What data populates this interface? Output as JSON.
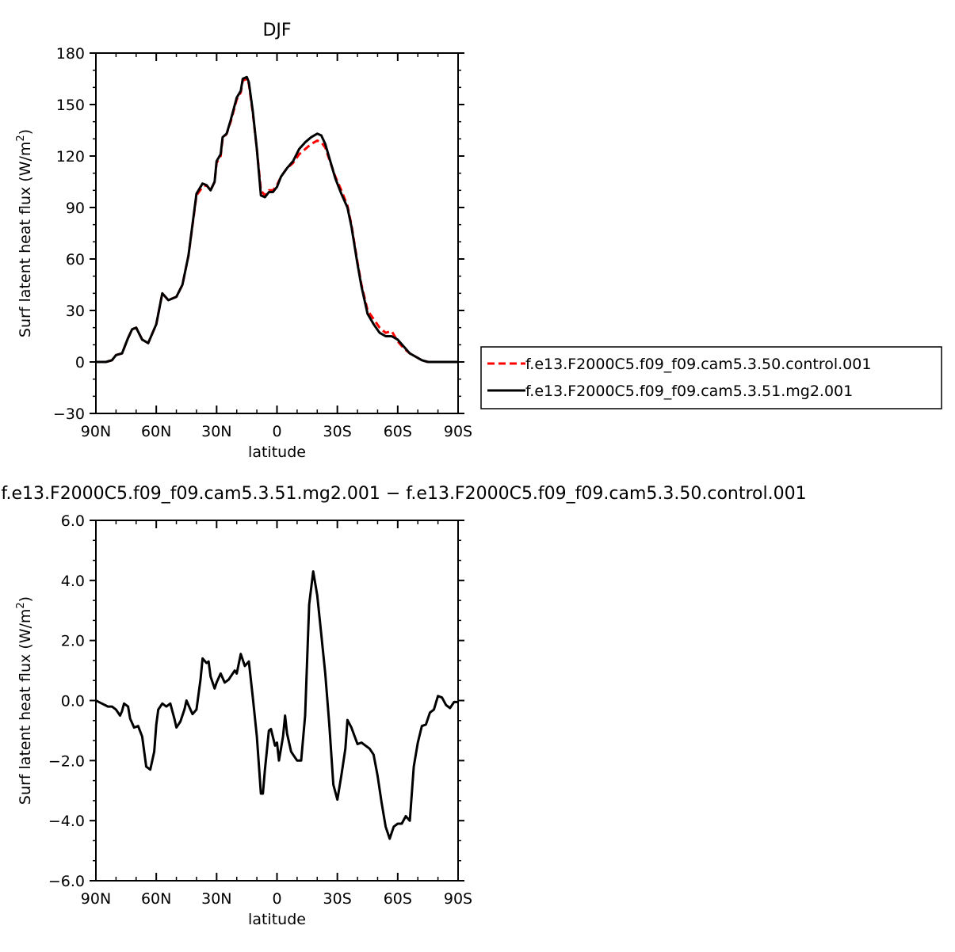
{
  "chart_data": [
    {
      "type": "line",
      "title": "DJF",
      "xlabel": "latitude",
      "ylabel": "Surf latent heat flux (W/m",
      "ylabel_sup": "2",
      "ylabel_close": ")",
      "xlim": [
        -90,
        90
      ],
      "ylim": [
        -30,
        180
      ],
      "x_tick_values": [
        -90,
        -60,
        -30,
        0,
        30,
        60,
        90
      ],
      "x_tick_labels": [
        "90N",
        "60N",
        "30N",
        "0",
        "30S",
        "60S",
        "90S"
      ],
      "y_tick_values": [
        -30,
        0,
        30,
        60,
        90,
        120,
        150,
        180
      ],
      "y_tick_labels": [
        "−30",
        "0",
        "30",
        "60",
        "90",
        "120",
        "150",
        "180"
      ],
      "grid": false,
      "legend_position": "right",
      "series": [
        {
          "name": "f.e13.F2000C5.f09_f09.cam5.3.50.control.001",
          "color": "#ff0000",
          "dash": "dashed",
          "x": [
            -90,
            -85,
            -82,
            -80,
            -77,
            -74,
            -72,
            -70,
            -67,
            -64,
            -60,
            -57,
            -54,
            -50,
            -47,
            -44,
            -40,
            -37,
            -35,
            -33,
            -31,
            -30,
            -28,
            -27,
            -25,
            -23,
            -20,
            -18,
            -17,
            -15,
            -14,
            -12,
            -10,
            -8,
            -6,
            -4,
            -2,
            0,
            2,
            5,
            8,
            11,
            14,
            17,
            20,
            22,
            24,
            26,
            29,
            32,
            35,
            37,
            40,
            42,
            45,
            48,
            51,
            54,
            57,
            60,
            63,
            66,
            69,
            72,
            75,
            78,
            80,
            83,
            86,
            88,
            90
          ],
          "y": [
            0,
            0,
            1,
            4,
            5,
            14,
            19,
            20,
            13,
            11,
            22,
            40,
            36,
            38,
            45,
            62,
            97,
            102,
            103,
            100,
            105,
            116,
            120,
            130,
            133,
            140,
            153,
            157,
            164,
            165,
            162,
            145,
            124,
            100,
            97,
            100,
            100,
            103,
            108,
            113,
            116,
            121,
            124,
            127,
            129,
            128,
            125,
            118,
            108,
            100,
            91,
            80,
            58,
            45,
            30,
            25,
            20,
            17,
            18,
            12,
            8,
            5,
            3,
            1,
            0,
            0,
            0,
            0,
            0,
            0,
            0
          ]
        },
        {
          "name": "f.e13.F2000C5.f09_f09.cam5.3.51.mg2.001",
          "color": "#000000",
          "dash": "solid",
          "x": [
            -90,
            -85,
            -82,
            -80,
            -77,
            -74,
            -72,
            -70,
            -67,
            -64,
            -60,
            -57,
            -54,
            -50,
            -47,
            -44,
            -40,
            -37,
            -35,
            -33,
            -31,
            -30,
            -28,
            -27,
            -25,
            -23,
            -20,
            -18,
            -17,
            -15,
            -14,
            -12,
            -10,
            -8,
            -6,
            -4,
            -2,
            0,
            2,
            5,
            8,
            11,
            14,
            17,
            20,
            22,
            24,
            26,
            29,
            32,
            35,
            37,
            40,
            42,
            45,
            48,
            51,
            54,
            57,
            60,
            63,
            66,
            69,
            72,
            75,
            78,
            80,
            83,
            86,
            88,
            90
          ],
          "y": [
            0,
            0,
            1,
            4,
            5,
            14,
            19,
            20,
            13,
            11,
            22,
            40,
            36,
            38,
            45,
            62,
            98,
            104,
            103,
            100,
            105,
            117,
            121,
            131,
            133,
            141,
            154,
            158,
            165,
            166,
            163,
            146,
            124,
            97,
            96,
            99,
            99,
            102,
            108,
            113,
            117,
            124,
            128,
            131,
            133,
            132,
            127,
            119,
            107,
            98,
            90,
            79,
            57,
            44,
            28,
            22,
            17,
            15,
            15,
            13,
            9,
            5,
            3,
            1,
            0,
            0,
            0,
            0,
            0,
            0,
            0
          ]
        }
      ]
    },
    {
      "type": "line",
      "title": "f.e13.F2000C5.f09_f09.cam5.3.51.mg2.001 − f.e13.F2000C5.f09_f09.cam5.3.50.control.001",
      "xlabel": "latitude",
      "ylabel": "Surf latent heat flux (W/m",
      "ylabel_sup": "2",
      "ylabel_close": ")",
      "xlim": [
        -90,
        90
      ],
      "ylim": [
        -6,
        6
      ],
      "x_tick_values": [
        -90,
        -60,
        -30,
        0,
        30,
        60,
        90
      ],
      "x_tick_labels": [
        "90N",
        "60N",
        "30N",
        "0",
        "30S",
        "60S",
        "90S"
      ],
      "y_tick_values": [
        -6,
        -4,
        -2,
        0,
        2,
        4,
        6
      ],
      "y_tick_labels": [
        "−6.0",
        "−4.0",
        "−2.0",
        "0.0",
        "2.0",
        "4.0",
        "6.0"
      ],
      "grid": false,
      "series": [
        {
          "color": "#000000",
          "dash": "solid",
          "x": [
            -90,
            -87,
            -84,
            -82,
            -80,
            -78,
            -77,
            -76,
            -74,
            -73,
            -71,
            -69,
            -67,
            -65,
            -63,
            -61,
            -60,
            -59,
            -57,
            -55,
            -53,
            -51,
            -50,
            -48,
            -46,
            -45,
            -43,
            -42,
            -40,
            -38,
            -37,
            -35,
            -34,
            -33,
            -31,
            -30,
            -28,
            -26,
            -24,
            -23,
            -21,
            -20,
            -18,
            -16,
            -14,
            -12,
            -10,
            -8,
            -7,
            -6,
            -4,
            -3,
            -1,
            0,
            1,
            3,
            4,
            5,
            7,
            8,
            10,
            12,
            14,
            16,
            18,
            20,
            22,
            24,
            26,
            28,
            30,
            32,
            34,
            35,
            37,
            40,
            42,
            44,
            46,
            48,
            50,
            52,
            54,
            56,
            58,
            60,
            62,
            64,
            66,
            68,
            70,
            72,
            74,
            76,
            78,
            80,
            82,
            84,
            86,
            88,
            90
          ],
          "y": [
            0,
            -0.1,
            -0.2,
            -0.2,
            -0.3,
            -0.5,
            -0.35,
            -0.1,
            -0.2,
            -0.6,
            -0.9,
            -0.85,
            -1.2,
            -2.2,
            -2.3,
            -1.7,
            -0.8,
            -0.3,
            -0.1,
            -0.2,
            -0.1,
            -0.6,
            -0.9,
            -0.7,
            -0.3,
            0,
            -0.3,
            -0.45,
            -0.3,
            0.7,
            1.4,
            1.25,
            1.3,
            0.8,
            0.4,
            0.6,
            0.9,
            0.6,
            0.7,
            0.8,
            1,
            0.9,
            1.55,
            1.15,
            1.3,
            0.1,
            -1.2,
            -3.1,
            -3.1,
            -2.3,
            -1,
            -0.95,
            -1.5,
            -1.4,
            -2,
            -1.2,
            -0.5,
            -1.1,
            -1.7,
            -1.8,
            -2,
            -2,
            -0.5,
            3.2,
            4.3,
            3.5,
            2.2,
            0.9,
            -0.8,
            -2.8,
            -3.3,
            -2.5,
            -1.6,
            -0.65,
            -0.9,
            -1.45,
            -1.4,
            -1.5,
            -1.6,
            -1.8,
            -2.5,
            -3.4,
            -4.2,
            -4.6,
            -4.2,
            -4.1,
            -4.1,
            -3.85,
            -4,
            -2.2,
            -1.4,
            -0.85,
            -0.8,
            -0.4,
            -0.3,
            0.15,
            0.1,
            -0.15,
            -0.25,
            -0.05,
            -0.05
          ]
        }
      ]
    }
  ]
}
